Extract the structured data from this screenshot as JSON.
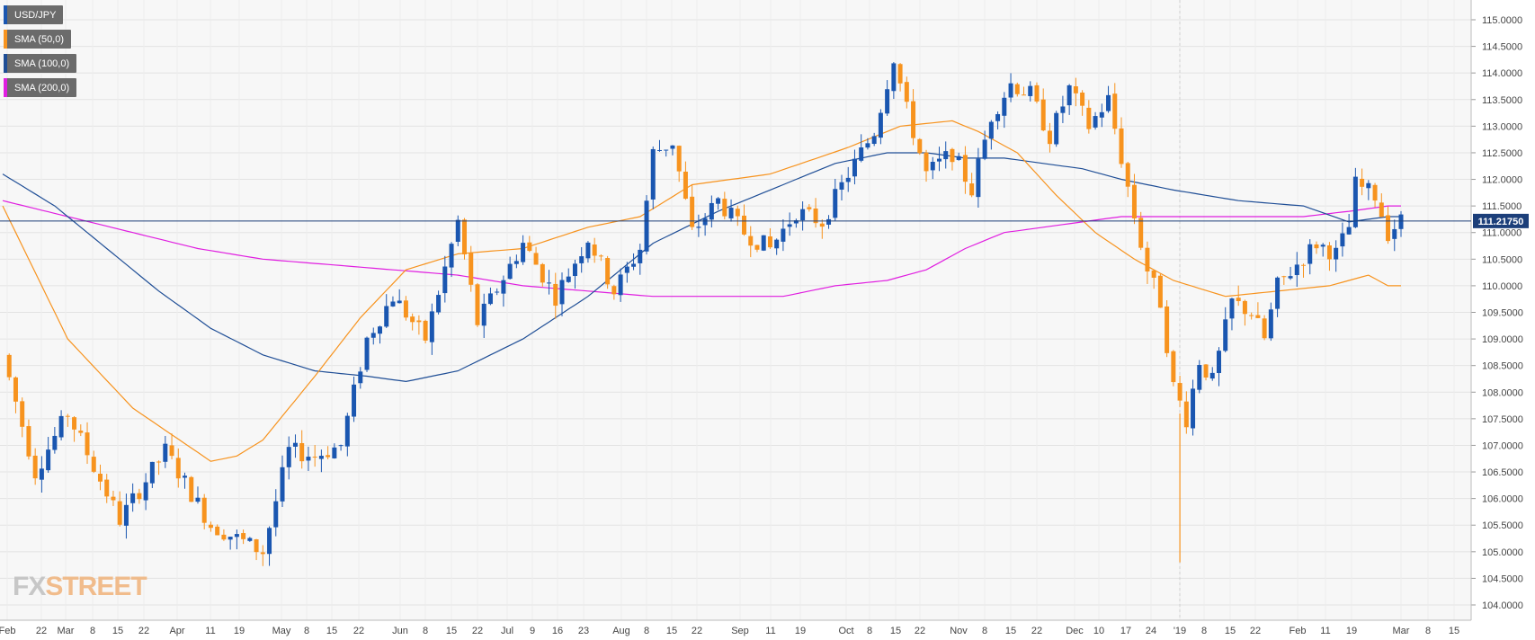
{
  "chart_data": {
    "type": "candlestick",
    "symbol": "USD/JPY",
    "legend": [
      {
        "label": "USD/JPY",
        "color": "#1a56b0"
      },
      {
        "label": "SMA (50,0)",
        "color": "#f7931e"
      },
      {
        "label": "SMA (100,0)",
        "color": "#1f4e96"
      },
      {
        "label": "SMA (200,0)",
        "color": "#e01ee0"
      }
    ],
    "ylim": [
      103.9,
      115.3
    ],
    "y_ticks": [
      "104.0000",
      "104.5000",
      "105.0000",
      "105.5000",
      "106.0000",
      "106.5000",
      "107.0000",
      "107.5000",
      "108.0000",
      "108.5000",
      "109.0000",
      "109.5000",
      "110.0000",
      "110.5000",
      "111.0000",
      "111.5000",
      "112.0000",
      "112.5000",
      "113.0000",
      "113.5000",
      "114.0000",
      "114.5000",
      "115.0000"
    ],
    "x_ticks": [
      "Feb",
      "22",
      "Mar",
      "8",
      "15",
      "22",
      "Apr",
      "11",
      "19",
      "May",
      "8",
      "15",
      "22",
      "Jun",
      "8",
      "15",
      "22",
      "Jul",
      "9",
      "16",
      "23",
      "Aug",
      "8",
      "15",
      "22",
      "Sep",
      "11",
      "19",
      "Oct",
      "8",
      "15",
      "22",
      "Nov",
      "8",
      "15",
      "22",
      "Dec",
      "10",
      "17",
      "24",
      "'19",
      "8",
      "15",
      "22",
      "Feb",
      "11",
      "19",
      "Mar",
      "8",
      "15"
    ],
    "last_price": "111.21750",
    "last_price_value": 111.2175,
    "grid": true,
    "legend_position": "top-left",
    "up_color": "#1a56b0",
    "down_color": "#f7931e",
    "watermark": "FXSTREET",
    "series_anchors": {
      "price": [
        [
          0,
          108.7
        ],
        [
          5,
          106.5
        ],
        [
          10,
          107.6
        ],
        [
          18,
          105.6
        ],
        [
          25,
          106.9
        ],
        [
          32,
          105.5
        ],
        [
          40,
          105.0
        ],
        [
          44,
          106.9
        ],
        [
          48,
          106.8
        ],
        [
          52,
          107.0
        ],
        [
          56,
          109.0
        ],
        [
          60,
          109.8
        ],
        [
          65,
          109.0
        ],
        [
          70,
          111.2
        ],
        [
          73,
          109.3
        ],
        [
          80,
          110.8
        ],
        [
          85,
          109.8
        ],
        [
          90,
          110.9
        ],
        [
          94,
          109.9
        ],
        [
          98,
          110.7
        ],
        [
          100,
          112.5
        ],
        [
          103,
          112.7
        ],
        [
          106,
          111.0
        ],
        [
          110,
          111.6
        ],
        [
          114,
          111.0
        ],
        [
          118,
          110.7
        ],
        [
          122,
          111.4
        ],
        [
          126,
          111.2
        ],
        [
          130,
          112.1
        ],
        [
          134,
          112.9
        ],
        [
          137,
          114.3
        ],
        [
          139,
          113.3
        ],
        [
          142,
          112.1
        ],
        [
          146,
          112.5
        ],
        [
          149,
          111.8
        ],
        [
          152,
          113.2
        ],
        [
          155,
          113.8
        ],
        [
          158,
          113.6
        ],
        [
          161,
          112.8
        ],
        [
          164,
          113.7
        ],
        [
          167,
          113.0
        ],
        [
          170,
          113.5
        ],
        [
          172,
          112.4
        ],
        [
          174,
          111.3
        ],
        [
          176,
          110.3
        ],
        [
          178,
          109.7
        ],
        [
          180,
          108.1
        ],
        [
          182,
          107.5
        ],
        [
          184,
          108.6
        ],
        [
          186,
          108.2
        ],
        [
          189,
          109.7
        ],
        [
          192,
          109.5
        ],
        [
          194,
          109.0
        ],
        [
          196,
          110.0
        ],
        [
          199,
          110.4
        ],
        [
          202,
          110.8
        ],
        [
          205,
          110.6
        ],
        [
          207,
          111.1
        ],
        [
          208,
          111.9
        ],
        [
          211,
          111.7
        ],
        [
          213,
          111.0
        ],
        [
          215,
          111.22
        ]
      ],
      "sma50": [
        [
          0,
          111.5
        ],
        [
          10,
          109.0
        ],
        [
          20,
          107.7
        ],
        [
          32,
          106.7
        ],
        [
          36,
          106.8
        ],
        [
          40,
          107.1
        ],
        [
          48,
          108.3
        ],
        [
          55,
          109.4
        ],
        [
          62,
          110.3
        ],
        [
          70,
          110.6
        ],
        [
          80,
          110.7
        ],
        [
          90,
          111.1
        ],
        [
          98,
          111.3
        ],
        [
          106,
          111.9
        ],
        [
          118,
          112.1
        ],
        [
          130,
          112.6
        ],
        [
          138,
          113.0
        ],
        [
          146,
          113.1
        ],
        [
          150,
          112.9
        ],
        [
          156,
          112.5
        ],
        [
          162,
          111.7
        ],
        [
          168,
          111.0
        ],
        [
          174,
          110.5
        ],
        [
          180,
          110.1
        ],
        [
          188,
          109.8
        ],
        [
          196,
          109.9
        ],
        [
          204,
          110.0
        ],
        [
          210,
          110.2
        ],
        [
          213,
          110.0
        ]
      ],
      "sma100": [
        [
          0,
          112.1
        ],
        [
          8,
          111.5
        ],
        [
          16,
          110.7
        ],
        [
          24,
          109.9
        ],
        [
          32,
          109.2
        ],
        [
          40,
          108.7
        ],
        [
          48,
          108.4
        ],
        [
          56,
          108.3
        ],
        [
          62,
          108.2
        ],
        [
          70,
          108.4
        ],
        [
          80,
          109.0
        ],
        [
          90,
          109.8
        ],
        [
          100,
          110.8
        ],
        [
          110,
          111.4
        ],
        [
          120,
          111.9
        ],
        [
          128,
          112.3
        ],
        [
          136,
          112.5
        ],
        [
          142,
          112.5
        ],
        [
          148,
          112.4
        ],
        [
          154,
          112.4
        ],
        [
          160,
          112.3
        ],
        [
          166,
          112.2
        ],
        [
          172,
          112.0
        ],
        [
          180,
          111.8
        ],
        [
          190,
          111.6
        ],
        [
          200,
          111.5
        ],
        [
          207,
          111.2
        ],
        [
          213,
          111.3
        ]
      ],
      "sma200": [
        [
          0,
          111.6
        ],
        [
          10,
          111.3
        ],
        [
          20,
          111.0
        ],
        [
          30,
          110.7
        ],
        [
          40,
          110.5
        ],
        [
          50,
          110.4
        ],
        [
          60,
          110.3
        ],
        [
          70,
          110.2
        ],
        [
          80,
          110.0
        ],
        [
          90,
          109.9
        ],
        [
          100,
          109.8
        ],
        [
          110,
          109.8
        ],
        [
          120,
          109.8
        ],
        [
          128,
          110.0
        ],
        [
          136,
          110.1
        ],
        [
          142,
          110.3
        ],
        [
          148,
          110.7
        ],
        [
          154,
          111.0
        ],
        [
          160,
          111.1
        ],
        [
          166,
          111.2
        ],
        [
          172,
          111.3
        ],
        [
          180,
          111.3
        ],
        [
          190,
          111.3
        ],
        [
          200,
          111.3
        ],
        [
          207,
          111.4
        ],
        [
          213,
          111.5
        ]
      ]
    },
    "spikes": [
      {
        "index": 181,
        "low": 104.8,
        "high": 107.6
      }
    ]
  }
}
